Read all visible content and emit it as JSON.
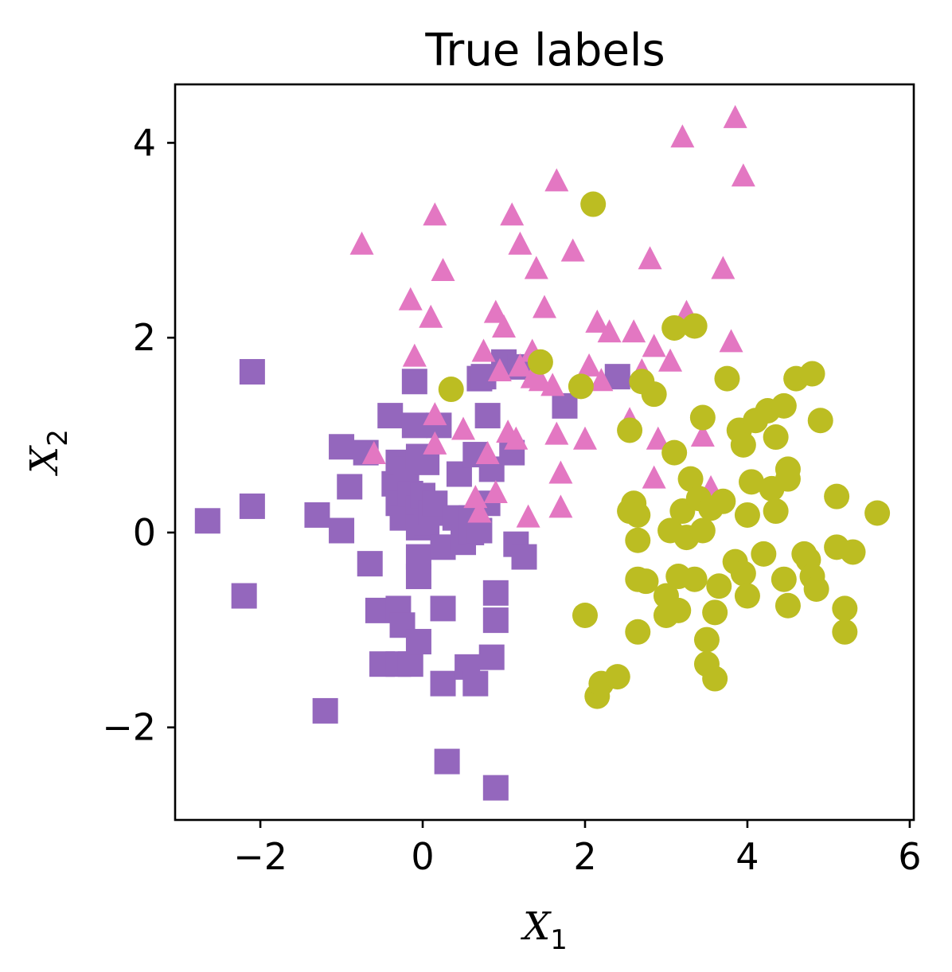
{
  "chart_data": {
    "type": "scatter",
    "title": "True labels",
    "xlabel": {
      "base": "X",
      "sub": "1"
    },
    "ylabel": {
      "base": "X",
      "sub": "2"
    },
    "xlim": [
      -3.05,
      6.05
    ],
    "ylim": [
      -2.95,
      4.6
    ],
    "xticks": [
      -2,
      0,
      2,
      4,
      6
    ],
    "yticks": [
      -2,
      0,
      2,
      4
    ],
    "grid": false,
    "legend": "none",
    "series": [
      {
        "marker": "square",
        "color": "#9467bd",
        "points": [
          [
            -2.65,
            0.12
          ],
          [
            -2.2,
            -0.65
          ],
          [
            -2.1,
            0.27
          ],
          [
            -2.1,
            1.65
          ],
          [
            -1.3,
            0.18
          ],
          [
            -1.2,
            -1.83
          ],
          [
            -1.0,
            0.88
          ],
          [
            -1.0,
            0.02
          ],
          [
            -0.9,
            0.47
          ],
          [
            -0.7,
            0.82
          ],
          [
            -0.65,
            -0.32
          ],
          [
            -0.55,
            -0.8
          ],
          [
            -0.5,
            -1.35
          ],
          [
            -0.4,
            1.2
          ],
          [
            -0.35,
            0.5
          ],
          [
            -0.3,
            0.72
          ],
          [
            -0.3,
            0.3
          ],
          [
            -0.3,
            -0.78
          ],
          [
            -0.3,
            -1.35
          ],
          [
            -0.25,
            -0.95
          ],
          [
            -0.25,
            0.15
          ],
          [
            -0.2,
            0.65
          ],
          [
            -0.15,
            0.4
          ],
          [
            -0.15,
            -1.35
          ],
          [
            -0.1,
            1.1
          ],
          [
            -0.1,
            1.55
          ],
          [
            -0.05,
            0.25
          ],
          [
            -0.05,
            0.05
          ],
          [
            -0.05,
            0.78
          ],
          [
            -0.05,
            -0.25
          ],
          [
            -0.05,
            -0.45
          ],
          [
            -0.05,
            -1.12
          ],
          [
            0.0,
            0.38
          ],
          [
            0.05,
            0.72
          ],
          [
            0.05,
            0.1
          ],
          [
            0.1,
            0.2
          ],
          [
            0.15,
            0.3
          ],
          [
            0.2,
            1.1
          ],
          [
            0.25,
            -0.15
          ],
          [
            0.25,
            -0.78
          ],
          [
            0.25,
            -1.55
          ],
          [
            0.3,
            -2.35
          ],
          [
            0.4,
            0.15
          ],
          [
            0.45,
            0.6
          ],
          [
            0.5,
            -0.1
          ],
          [
            0.55,
            -1.38
          ],
          [
            0.6,
            0.15
          ],
          [
            0.6,
            0.0
          ],
          [
            0.65,
            -1.55
          ],
          [
            0.65,
            0.8
          ],
          [
            0.7,
            0.02
          ],
          [
            0.7,
            1.58
          ],
          [
            0.75,
            1.6
          ],
          [
            0.8,
            1.2
          ],
          [
            0.8,
            0.3
          ],
          [
            0.85,
            -1.28
          ],
          [
            0.85,
            0.65
          ],
          [
            0.9,
            -0.62
          ],
          [
            0.9,
            -0.9
          ],
          [
            0.9,
            -2.62
          ],
          [
            1.0,
            1.75
          ],
          [
            1.1,
            0.82
          ],
          [
            1.15,
            -0.12
          ],
          [
            1.2,
            1.7
          ],
          [
            1.25,
            -0.25
          ],
          [
            1.75,
            1.3
          ],
          [
            2.4,
            1.6
          ]
        ]
      },
      {
        "marker": "triangle",
        "color": "#e377c2",
        "points": [
          [
            -0.75,
            2.95
          ],
          [
            -0.6,
            0.8
          ],
          [
            -0.15,
            2.38
          ],
          [
            -0.1,
            1.8
          ],
          [
            0.1,
            2.2
          ],
          [
            0.15,
            0.9
          ],
          [
            0.15,
            1.2
          ],
          [
            0.15,
            3.25
          ],
          [
            0.25,
            2.68
          ],
          [
            0.5,
            1.05
          ],
          [
            0.65,
            0.35
          ],
          [
            0.7,
            0.2
          ],
          [
            0.75,
            1.85
          ],
          [
            0.8,
            0.8
          ],
          [
            0.9,
            2.25
          ],
          [
            0.9,
            0.4
          ],
          [
            0.95,
            1.65
          ],
          [
            1.0,
            2.1
          ],
          [
            1.05,
            1.02
          ],
          [
            1.1,
            3.25
          ],
          [
            1.15,
            0.95
          ],
          [
            1.2,
            1.7
          ],
          [
            1.2,
            2.95
          ],
          [
            1.3,
            0.15
          ],
          [
            1.35,
            1.58
          ],
          [
            1.35,
            1.85
          ],
          [
            1.4,
            2.7
          ],
          [
            1.45,
            1.55
          ],
          [
            1.5,
            2.3
          ],
          [
            1.6,
            1.5
          ],
          [
            1.65,
            1.0
          ],
          [
            1.65,
            3.6
          ],
          [
            1.7,
            0.6
          ],
          [
            1.7,
            0.25
          ],
          [
            1.85,
            2.88
          ],
          [
            2.0,
            0.95
          ],
          [
            2.05,
            1.7
          ],
          [
            2.15,
            2.15
          ],
          [
            2.2,
            1.55
          ],
          [
            2.3,
            2.05
          ],
          [
            2.55,
            1.15
          ],
          [
            2.6,
            2.05
          ],
          [
            2.7,
            1.65
          ],
          [
            2.8,
            2.8
          ],
          [
            2.85,
            1.9
          ],
          [
            2.85,
            0.55
          ],
          [
            2.9,
            0.95
          ],
          [
            3.05,
            1.75
          ],
          [
            3.2,
            4.05
          ],
          [
            3.25,
            2.25
          ],
          [
            3.45,
            0.98
          ],
          [
            3.55,
            0.45
          ],
          [
            3.7,
            2.7
          ],
          [
            3.8,
            1.95
          ],
          [
            3.85,
            4.25
          ],
          [
            3.95,
            3.65
          ]
        ]
      },
      {
        "marker": "circle",
        "color": "#bcbd22",
        "points": [
          [
            0.35,
            1.47
          ],
          [
            1.45,
            1.75
          ],
          [
            1.95,
            1.5
          ],
          [
            2.0,
            -0.85
          ],
          [
            2.1,
            3.37
          ],
          [
            2.15,
            -1.68
          ],
          [
            2.2,
            -1.55
          ],
          [
            2.4,
            -1.48
          ],
          [
            2.55,
            1.05
          ],
          [
            2.55,
            0.22
          ],
          [
            2.6,
            0.3
          ],
          [
            2.65,
            0.18
          ],
          [
            2.65,
            -0.08
          ],
          [
            2.65,
            -0.48
          ],
          [
            2.65,
            -1.02
          ],
          [
            2.7,
            1.55
          ],
          [
            2.75,
            -0.5
          ],
          [
            2.85,
            1.42
          ],
          [
            3.0,
            -0.65
          ],
          [
            3.0,
            -0.85
          ],
          [
            3.05,
            0.02
          ],
          [
            3.1,
            0.82
          ],
          [
            3.1,
            2.1
          ],
          [
            3.15,
            -0.45
          ],
          [
            3.15,
            -0.8
          ],
          [
            3.2,
            0.22
          ],
          [
            3.25,
            -0.05
          ],
          [
            3.3,
            0.55
          ],
          [
            3.35,
            2.12
          ],
          [
            3.35,
            -0.48
          ],
          [
            3.4,
            0.35
          ],
          [
            3.45,
            0.02
          ],
          [
            3.45,
            1.18
          ],
          [
            3.5,
            -1.1
          ],
          [
            3.5,
            -1.35
          ],
          [
            3.55,
            0.25
          ],
          [
            3.6,
            -0.82
          ],
          [
            3.6,
            -1.5
          ],
          [
            3.65,
            -0.55
          ],
          [
            3.7,
            0.32
          ],
          [
            3.75,
            1.58
          ],
          [
            3.85,
            -0.3
          ],
          [
            3.9,
            1.05
          ],
          [
            3.95,
            0.9
          ],
          [
            3.95,
            -0.42
          ],
          [
            4.0,
            -0.65
          ],
          [
            4.0,
            0.18
          ],
          [
            4.05,
            0.52
          ],
          [
            4.1,
            1.15
          ],
          [
            4.2,
            -0.22
          ],
          [
            4.25,
            1.25
          ],
          [
            4.3,
            0.45
          ],
          [
            4.35,
            0.22
          ],
          [
            4.35,
            0.98
          ],
          [
            4.45,
            -0.48
          ],
          [
            4.45,
            1.3
          ],
          [
            4.5,
            0.65
          ],
          [
            4.5,
            0.55
          ],
          [
            4.5,
            -0.75
          ],
          [
            4.6,
            1.58
          ],
          [
            4.7,
            -0.22
          ],
          [
            4.75,
            -0.28
          ],
          [
            4.8,
            1.63
          ],
          [
            4.8,
            -0.45
          ],
          [
            4.85,
            -0.58
          ],
          [
            4.9,
            1.15
          ],
          [
            5.1,
            0.37
          ],
          [
            5.1,
            -0.15
          ],
          [
            5.2,
            -0.78
          ],
          [
            5.2,
            -1.02
          ],
          [
            5.3,
            -0.2
          ],
          [
            5.6,
            0.2
          ]
        ]
      }
    ]
  }
}
